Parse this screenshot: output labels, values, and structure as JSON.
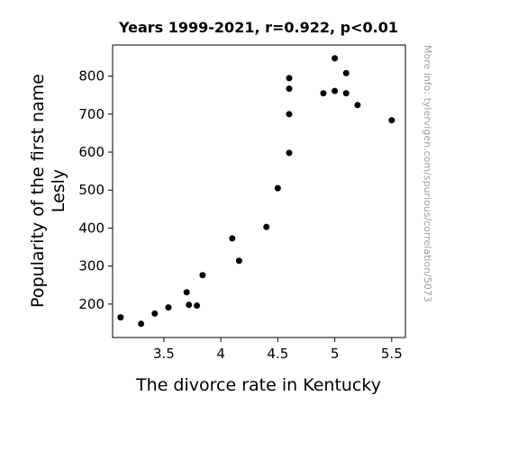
{
  "chart_data": {
    "type": "scatter",
    "title": "Years 1999-2021, r=0.922, p<0.01",
    "xlabel": "The divorce rate in Kentucky",
    "ylabel_lines": [
      "Popularity of the first name",
      "Lesly"
    ],
    "xlim": [
      3.05,
      5.62
    ],
    "ylim": [
      112,
      882
    ],
    "xticks": [
      3.5,
      4,
      4.5,
      5,
      5.5
    ],
    "xtick_labels": [
      "3.5",
      "4",
      "4.5",
      "5",
      "5.5"
    ],
    "yticks": [
      200,
      300,
      400,
      500,
      600,
      700,
      800
    ],
    "ytick_labels": [
      "200",
      "300",
      "400",
      "500",
      "600",
      "700",
      "800"
    ],
    "grid": false,
    "legend": "none",
    "marker_color": "#000000",
    "points": [
      {
        "x": 3.12,
        "y": 165
      },
      {
        "x": 3.3,
        "y": 148
      },
      {
        "x": 3.42,
        "y": 175
      },
      {
        "x": 3.54,
        "y": 191
      },
      {
        "x": 3.7,
        "y": 231
      },
      {
        "x": 3.72,
        "y": 198
      },
      {
        "x": 3.79,
        "y": 196
      },
      {
        "x": 3.84,
        "y": 276
      },
      {
        "x": 4.1,
        "y": 373
      },
      {
        "x": 4.16,
        "y": 314
      },
      {
        "x": 4.4,
        "y": 403
      },
      {
        "x": 4.5,
        "y": 505
      },
      {
        "x": 4.6,
        "y": 598
      },
      {
        "x": 4.6,
        "y": 700
      },
      {
        "x": 4.6,
        "y": 767
      },
      {
        "x": 4.6,
        "y": 795
      },
      {
        "x": 4.9,
        "y": 755
      },
      {
        "x": 5.0,
        "y": 847
      },
      {
        "x": 5.0,
        "y": 761
      },
      {
        "x": 5.1,
        "y": 808
      },
      {
        "x": 5.1,
        "y": 755
      },
      {
        "x": 5.2,
        "y": 724
      },
      {
        "x": 5.5,
        "y": 684
      }
    ]
  },
  "watermark": "More info: tylervigen.com/spurious/correlation/5073"
}
